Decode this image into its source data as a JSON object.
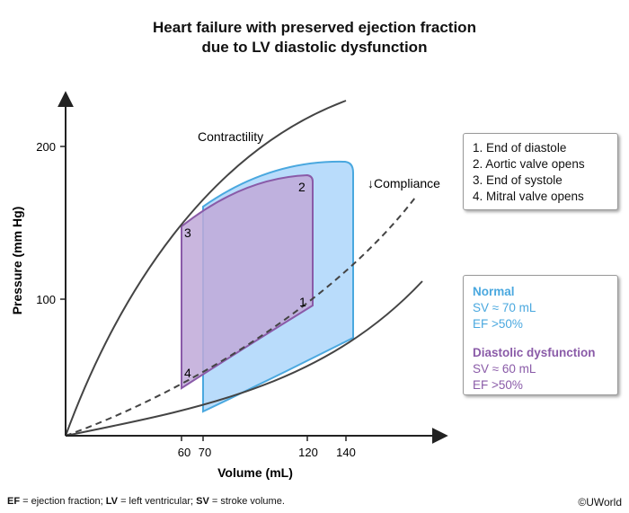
{
  "title_line1": "Heart failure with preserved ejection fraction",
  "title_line2": "due to LV diastolic dysfunction",
  "axes": {
    "y_label": "Pressure (mm Hg)",
    "x_label": "Volume (mL)",
    "y_ticks": [
      "100",
      "200"
    ],
    "x_ticks": [
      "60",
      "70",
      "120",
      "140"
    ]
  },
  "curve_labels": {
    "contractility": "Contractility",
    "compliance": "↓Compliance"
  },
  "point_labels": [
    "1",
    "2",
    "3",
    "4"
  ],
  "steps": [
    "1. End of diastole",
    "2. Aortic valve opens",
    "3. End of systole",
    "4. Mitral valve opens"
  ],
  "comparison": {
    "normal": {
      "header": "Normal",
      "sv": "SV ≈ 70 mL",
      "ef": "EF >50%"
    },
    "diastolic": {
      "header": "Diastolic dysfunction",
      "sv": "SV ≈ 60 mL",
      "ef": "EF >50%"
    }
  },
  "footer": {
    "ef_abbr": "EF",
    "ef_text": " = ejection fraction; ",
    "lv_abbr": "LV",
    "lv_text": " = left ventricular; ",
    "sv_abbr": "SV",
    "sv_text": " = stroke volume.",
    "copyright": "©UWorld"
  },
  "colors": {
    "normal_fill": "#b9dcfb",
    "normal_stroke": "#4aa8df",
    "diastolic_fill": "#c9b6dc",
    "diastolic_stroke": "#8a5ba8"
  }
}
